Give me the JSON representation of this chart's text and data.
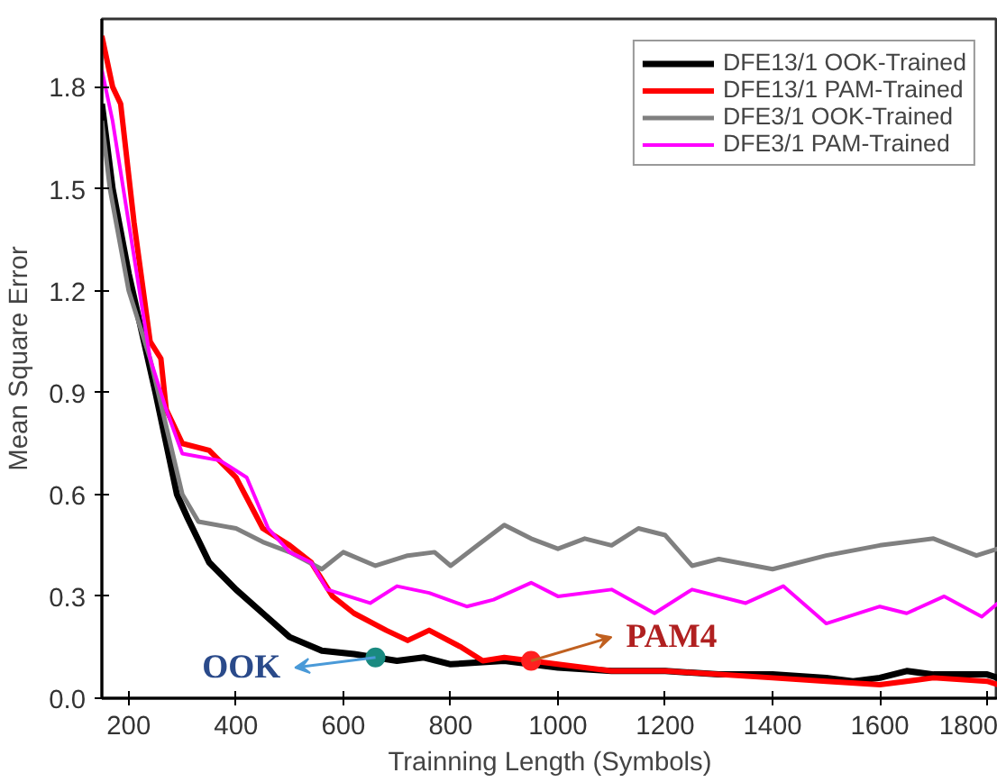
{
  "chart_data": {
    "type": "line",
    "xlabel": "Trainning Length (Symbols)",
    "ylabel": "Mean Square Error",
    "xlim": [
      150,
      1820
    ],
    "ylim": [
      0,
      2.0
    ],
    "xticks": [
      200,
      400,
      600,
      800,
      1000,
      1200,
      1400,
      1600,
      1800
    ],
    "yticks": [
      {
        "value": 0,
        "label": "0.0"
      },
      0.3,
      0.6,
      0.9,
      1.2,
      1.5,
      1.8
    ],
    "grid": false,
    "legend": "top right",
    "line_style": "solid",
    "series": [
      {
        "name": "DFE13/1 OOK-Trained",
        "color": "#000000",
        "x": [
          150,
          170,
          200,
          250,
          290,
          310,
          350,
          400,
          450,
          500,
          560,
          620,
          700,
          750,
          800,
          900,
          1000,
          1100,
          1200,
          1300,
          1400,
          1500,
          1550,
          1600,
          1650,
          1700,
          1800,
          1820
        ],
        "values": [
          1.75,
          1.5,
          1.25,
          0.9,
          0.6,
          0.53,
          0.4,
          0.32,
          0.25,
          0.18,
          0.14,
          0.13,
          0.11,
          0.12,
          0.1,
          0.11,
          0.09,
          0.08,
          0.08,
          0.07,
          0.07,
          0.06,
          0.05,
          0.06,
          0.08,
          0.07,
          0.07,
          0.06
        ]
      },
      {
        "name": "DFE13/1 PAM-Trained",
        "color": "#ff0000",
        "x": [
          150,
          170,
          185,
          210,
          240,
          260,
          270,
          300,
          350,
          400,
          450,
          500,
          540,
          580,
          620,
          680,
          720,
          760,
          820,
          860,
          900,
          1000,
          1100,
          1200,
          1300,
          1400,
          1500,
          1600,
          1700,
          1800,
          1820
        ],
        "values": [
          1.95,
          1.8,
          1.75,
          1.4,
          1.05,
          1.0,
          0.85,
          0.75,
          0.73,
          0.65,
          0.5,
          0.45,
          0.4,
          0.3,
          0.25,
          0.2,
          0.17,
          0.2,
          0.15,
          0.11,
          0.12,
          0.1,
          0.08,
          0.08,
          0.07,
          0.06,
          0.05,
          0.04,
          0.06,
          0.05,
          0.04
        ]
      },
      {
        "name": "DFE3/1 OOK-Trained",
        "color": "#808080",
        "x": [
          150,
          165,
          200,
          240,
          270,
          300,
          330,
          400,
          450,
          500,
          560,
          600,
          660,
          720,
          770,
          800,
          850,
          900,
          950,
          1000,
          1050,
          1100,
          1150,
          1200,
          1250,
          1300,
          1400,
          1500,
          1600,
          1700,
          1780,
          1820
        ],
        "values": [
          1.7,
          1.5,
          1.2,
          1.0,
          0.8,
          0.6,
          0.52,
          0.5,
          0.46,
          0.43,
          0.38,
          0.43,
          0.39,
          0.42,
          0.43,
          0.39,
          0.45,
          0.51,
          0.47,
          0.44,
          0.47,
          0.45,
          0.5,
          0.48,
          0.39,
          0.41,
          0.38,
          0.42,
          0.45,
          0.47,
          0.42,
          0.44
        ]
      },
      {
        "name": "DFE3/1 PAM-Trained",
        "color": "#ff00ff",
        "x": [
          150,
          170,
          210,
          240,
          270,
          300,
          370,
          420,
          460,
          500,
          540,
          570,
          650,
          700,
          760,
          830,
          880,
          950,
          1000,
          1100,
          1180,
          1250,
          1350,
          1420,
          1500,
          1600,
          1650,
          1720,
          1790,
          1820
        ],
        "values": [
          1.85,
          1.7,
          1.3,
          1.0,
          0.85,
          0.72,
          0.7,
          0.65,
          0.5,
          0.43,
          0.4,
          0.32,
          0.28,
          0.33,
          0.31,
          0.27,
          0.29,
          0.34,
          0.3,
          0.32,
          0.25,
          0.32,
          0.28,
          0.33,
          0.22,
          0.27,
          0.25,
          0.3,
          0.24,
          0.28
        ]
      }
    ],
    "annotations": [
      {
        "text": "OOK",
        "x": 660,
        "y": 0.12
      },
      {
        "text": "PAM4",
        "x": 950,
        "y": 0.11
      }
    ]
  }
}
